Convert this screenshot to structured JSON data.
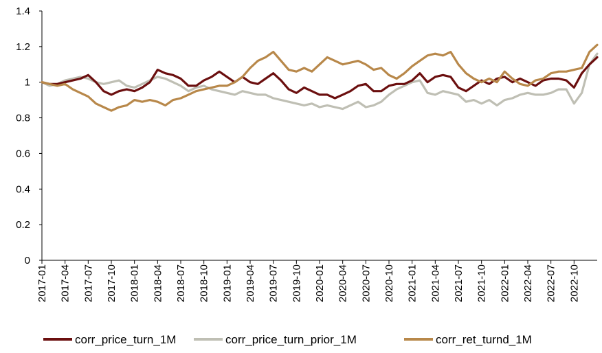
{
  "chart_data": {
    "type": "line",
    "title": "",
    "xlabel": "",
    "ylabel": "",
    "ylim": [
      0,
      1.4
    ],
    "yticks": [
      "0",
      "0.2",
      "0.4",
      "0.6",
      "0.8",
      "1",
      "1.2",
      "1.4"
    ],
    "xticks": [
      "2017-01",
      "2017-04",
      "2017-07",
      "2017-10",
      "2018-01",
      "2018-04",
      "2018-07",
      "2018-10",
      "2019-01",
      "2019-04",
      "2019-07",
      "2019-10",
      "2020-01",
      "2020-04",
      "2020-07",
      "2020-10",
      "2021-01",
      "2021-04",
      "2021-07",
      "2021-10",
      "2022-01",
      "2022-04",
      "2022-07",
      "2022-10"
    ],
    "x_start": "2017-01",
    "x_end": "2023-01",
    "grid": false,
    "legend_position": "bottom",
    "series": [
      {
        "name": "corr_price_turn_1M",
        "color": "#6B0F0F",
        "points": [
          [
            "2017-01",
            1.0
          ],
          [
            "2017-02",
            0.99
          ],
          [
            "2017-03",
            0.99
          ],
          [
            "2017-04",
            1.0
          ],
          [
            "2017-05",
            1.01
          ],
          [
            "2017-06",
            1.02
          ],
          [
            "2017-07",
            1.04
          ],
          [
            "2017-08",
            1.0
          ],
          [
            "2017-09",
            0.95
          ],
          [
            "2017-10",
            0.93
          ],
          [
            "2017-11",
            0.95
          ],
          [
            "2017-12",
            0.96
          ],
          [
            "2018-01",
            0.95
          ],
          [
            "2018-02",
            0.97
          ],
          [
            "2018-03",
            1.0
          ],
          [
            "2018-04",
            1.07
          ],
          [
            "2018-05",
            1.05
          ],
          [
            "2018-06",
            1.04
          ],
          [
            "2018-07",
            1.02
          ],
          [
            "2018-08",
            0.98
          ],
          [
            "2018-09",
            0.98
          ],
          [
            "2018-10",
            1.01
          ],
          [
            "2018-11",
            1.03
          ],
          [
            "2018-12",
            1.06
          ],
          [
            "2019-01",
            1.03
          ],
          [
            "2019-02",
            1.0
          ],
          [
            "2019-03",
            1.03
          ],
          [
            "2019-04",
            1.0
          ],
          [
            "2019-05",
            0.99
          ],
          [
            "2019-06",
            1.02
          ],
          [
            "2019-07",
            1.05
          ],
          [
            "2019-08",
            1.01
          ],
          [
            "2019-09",
            0.96
          ],
          [
            "2019-10",
            0.94
          ],
          [
            "2019-11",
            0.97
          ],
          [
            "2019-12",
            0.95
          ],
          [
            "2020-01",
            0.93
          ],
          [
            "2020-02",
            0.93
          ],
          [
            "2020-03",
            0.91
          ],
          [
            "2020-04",
            0.93
          ],
          [
            "2020-05",
            0.95
          ],
          [
            "2020-06",
            0.98
          ],
          [
            "2020-07",
            0.99
          ],
          [
            "2020-08",
            0.95
          ],
          [
            "2020-09",
            0.95
          ],
          [
            "2020-10",
            0.98
          ],
          [
            "2020-11",
            0.99
          ],
          [
            "2020-12",
            0.99
          ],
          [
            "2021-01",
            1.01
          ],
          [
            "2021-02",
            1.05
          ],
          [
            "2021-03",
            1.0
          ],
          [
            "2021-04",
            1.03
          ],
          [
            "2021-05",
            1.04
          ],
          [
            "2021-06",
            1.03
          ],
          [
            "2021-07",
            0.97
          ],
          [
            "2021-08",
            0.95
          ],
          [
            "2021-09",
            0.98
          ],
          [
            "2021-10",
            1.01
          ],
          [
            "2021-11",
            0.99
          ],
          [
            "2021-12",
            1.02
          ],
          [
            "2022-01",
            1.03
          ],
          [
            "2022-02",
            1.0
          ],
          [
            "2022-03",
            1.02
          ],
          [
            "2022-04",
            1.0
          ],
          [
            "2022-05",
            0.98
          ],
          [
            "2022-06",
            1.01
          ],
          [
            "2022-07",
            1.02
          ],
          [
            "2022-08",
            1.02
          ],
          [
            "2022-09",
            1.01
          ],
          [
            "2022-10",
            0.97
          ],
          [
            "2022-11",
            1.05
          ],
          [
            "2022-12",
            1.1
          ],
          [
            "2023-01",
            1.14
          ]
        ]
      },
      {
        "name": "corr_price_turn_prior_1M",
        "color": "#BFBFB4",
        "points": [
          [
            "2017-01",
            1.0
          ],
          [
            "2017-02",
            0.98
          ],
          [
            "2017-03",
            0.99
          ],
          [
            "2017-04",
            1.01
          ],
          [
            "2017-05",
            1.02
          ],
          [
            "2017-06",
            1.03
          ],
          [
            "2017-07",
            1.02
          ],
          [
            "2017-08",
            1.0
          ],
          [
            "2017-09",
            0.99
          ],
          [
            "2017-10",
            1.0
          ],
          [
            "2017-11",
            1.01
          ],
          [
            "2017-12",
            0.98
          ],
          [
            "2018-01",
            0.97
          ],
          [
            "2018-02",
            0.99
          ],
          [
            "2018-03",
            1.01
          ],
          [
            "2018-04",
            1.03
          ],
          [
            "2018-05",
            1.02
          ],
          [
            "2018-06",
            1.0
          ],
          [
            "2018-07",
            0.98
          ],
          [
            "2018-08",
            0.95
          ],
          [
            "2018-09",
            0.97
          ],
          [
            "2018-10",
            0.98
          ],
          [
            "2018-11",
            0.96
          ],
          [
            "2018-12",
            0.95
          ],
          [
            "2019-01",
            0.94
          ],
          [
            "2019-02",
            0.93
          ],
          [
            "2019-03",
            0.95
          ],
          [
            "2019-04",
            0.94
          ],
          [
            "2019-05",
            0.93
          ],
          [
            "2019-06",
            0.93
          ],
          [
            "2019-07",
            0.91
          ],
          [
            "2019-08",
            0.9
          ],
          [
            "2019-09",
            0.89
          ],
          [
            "2019-10",
            0.88
          ],
          [
            "2019-11",
            0.87
          ],
          [
            "2019-12",
            0.88
          ],
          [
            "2020-01",
            0.86
          ],
          [
            "2020-02",
            0.87
          ],
          [
            "2020-03",
            0.86
          ],
          [
            "2020-04",
            0.85
          ],
          [
            "2020-05",
            0.87
          ],
          [
            "2020-06",
            0.89
          ],
          [
            "2020-07",
            0.86
          ],
          [
            "2020-08",
            0.87
          ],
          [
            "2020-09",
            0.89
          ],
          [
            "2020-10",
            0.93
          ],
          [
            "2020-11",
            0.96
          ],
          [
            "2020-12",
            0.98
          ],
          [
            "2021-01",
            1.0
          ],
          [
            "2021-02",
            1.01
          ],
          [
            "2021-03",
            0.94
          ],
          [
            "2021-04",
            0.93
          ],
          [
            "2021-05",
            0.95
          ],
          [
            "2021-06",
            0.94
          ],
          [
            "2021-07",
            0.93
          ],
          [
            "2021-08",
            0.89
          ],
          [
            "2021-09",
            0.9
          ],
          [
            "2021-10",
            0.88
          ],
          [
            "2021-11",
            0.9
          ],
          [
            "2021-12",
            0.87
          ],
          [
            "2022-01",
            0.9
          ],
          [
            "2022-02",
            0.91
          ],
          [
            "2022-03",
            0.93
          ],
          [
            "2022-04",
            0.94
          ],
          [
            "2022-05",
            0.93
          ],
          [
            "2022-06",
            0.93
          ],
          [
            "2022-07",
            0.94
          ],
          [
            "2022-08",
            0.96
          ],
          [
            "2022-09",
            0.96
          ],
          [
            "2022-10",
            0.88
          ],
          [
            "2022-11",
            0.94
          ],
          [
            "2022-12",
            1.1
          ],
          [
            "2023-01",
            1.16
          ]
        ]
      },
      {
        "name": "corr_ret_turnd_1M",
        "color": "#B8884A",
        "points": [
          [
            "2017-01",
            1.0
          ],
          [
            "2017-02",
            0.99
          ],
          [
            "2017-03",
            0.98
          ],
          [
            "2017-04",
            0.99
          ],
          [
            "2017-05",
            0.96
          ],
          [
            "2017-06",
            0.94
          ],
          [
            "2017-07",
            0.92
          ],
          [
            "2017-08",
            0.88
          ],
          [
            "2017-09",
            0.86
          ],
          [
            "2017-10",
            0.84
          ],
          [
            "2017-11",
            0.86
          ],
          [
            "2017-12",
            0.87
          ],
          [
            "2018-01",
            0.9
          ],
          [
            "2018-02",
            0.89
          ],
          [
            "2018-03",
            0.9
          ],
          [
            "2018-04",
            0.89
          ],
          [
            "2018-05",
            0.87
          ],
          [
            "2018-06",
            0.9
          ],
          [
            "2018-07",
            0.91
          ],
          [
            "2018-08",
            0.93
          ],
          [
            "2018-09",
            0.95
          ],
          [
            "2018-10",
            0.96
          ],
          [
            "2018-11",
            0.97
          ],
          [
            "2018-12",
            0.98
          ],
          [
            "2019-01",
            0.98
          ],
          [
            "2019-02",
            1.0
          ],
          [
            "2019-03",
            1.03
          ],
          [
            "2019-04",
            1.08
          ],
          [
            "2019-05",
            1.12
          ],
          [
            "2019-06",
            1.14
          ],
          [
            "2019-07",
            1.17
          ],
          [
            "2019-08",
            1.12
          ],
          [
            "2019-09",
            1.07
          ],
          [
            "2019-10",
            1.06
          ],
          [
            "2019-11",
            1.08
          ],
          [
            "2019-12",
            1.06
          ],
          [
            "2020-01",
            1.1
          ],
          [
            "2020-02",
            1.14
          ],
          [
            "2020-03",
            1.12
          ],
          [
            "2020-04",
            1.1
          ],
          [
            "2020-05",
            1.11
          ],
          [
            "2020-06",
            1.12
          ],
          [
            "2020-07",
            1.1
          ],
          [
            "2020-08",
            1.07
          ],
          [
            "2020-09",
            1.08
          ],
          [
            "2020-10",
            1.04
          ],
          [
            "2020-11",
            1.02
          ],
          [
            "2020-12",
            1.05
          ],
          [
            "2021-01",
            1.09
          ],
          [
            "2021-02",
            1.12
          ],
          [
            "2021-03",
            1.15
          ],
          [
            "2021-04",
            1.16
          ],
          [
            "2021-05",
            1.15
          ],
          [
            "2021-06",
            1.17
          ],
          [
            "2021-07",
            1.1
          ],
          [
            "2021-08",
            1.05
          ],
          [
            "2021-09",
            1.02
          ],
          [
            "2021-10",
            1.0
          ],
          [
            "2021-11",
            1.02
          ],
          [
            "2021-12",
            1.0
          ],
          [
            "2022-01",
            1.06
          ],
          [
            "2022-02",
            1.02
          ],
          [
            "2022-03",
            0.99
          ],
          [
            "2022-04",
            0.98
          ],
          [
            "2022-05",
            1.01
          ],
          [
            "2022-06",
            1.02
          ],
          [
            "2022-07",
            1.05
          ],
          [
            "2022-08",
            1.06
          ],
          [
            "2022-09",
            1.06
          ],
          [
            "2022-10",
            1.07
          ],
          [
            "2022-11",
            1.08
          ],
          [
            "2022-12",
            1.17
          ],
          [
            "2023-01",
            1.21
          ]
        ]
      }
    ]
  }
}
